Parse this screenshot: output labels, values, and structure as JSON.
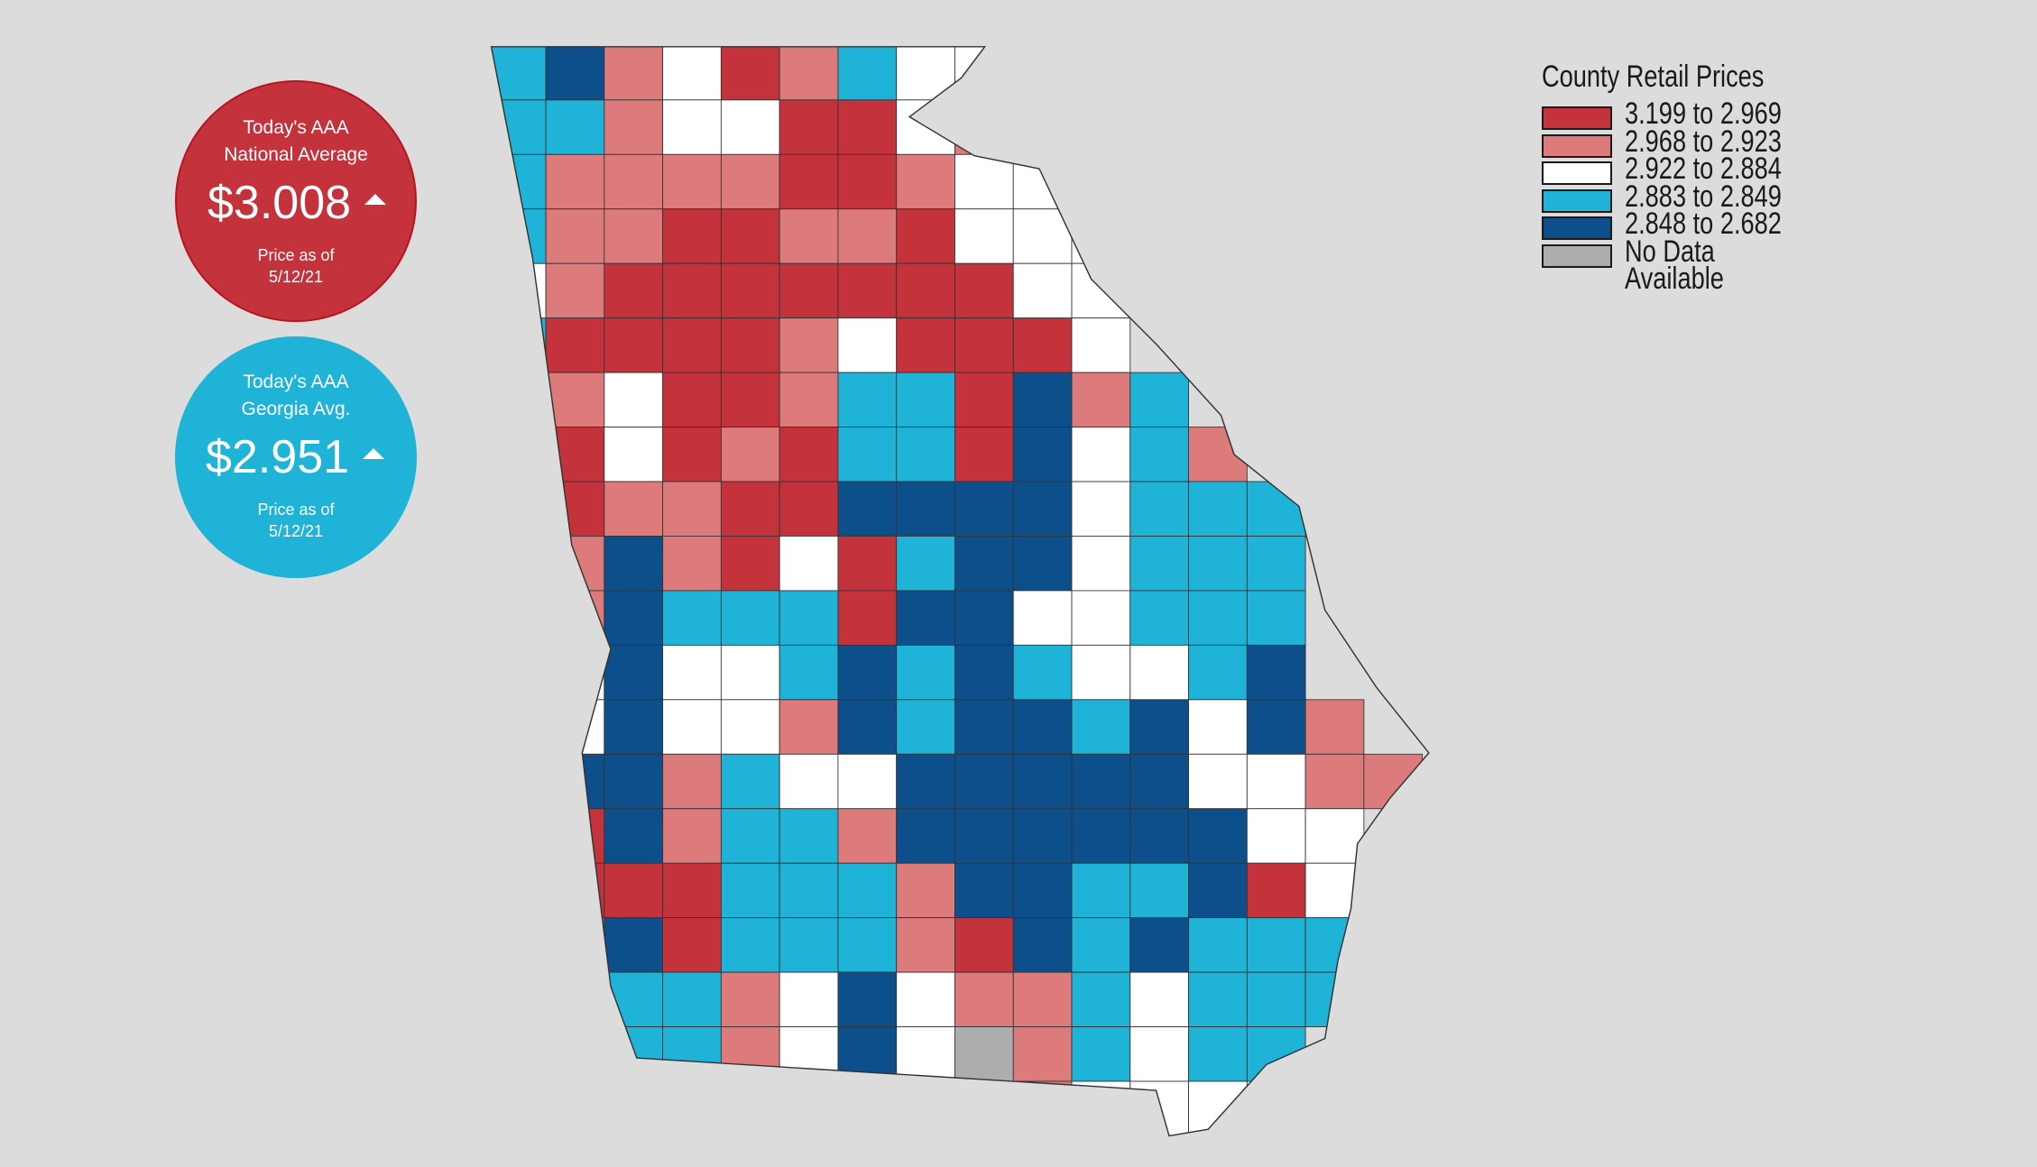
{
  "national": {
    "title_line1": "Today's AAA",
    "title_line2": "National Average",
    "price": "$3.008",
    "trend": "up",
    "date_line1": "Price as of",
    "date_line2": "5/12/21",
    "color": "#c4323c"
  },
  "georgia": {
    "title_line1": "Today's AAA",
    "title_line2": "Georgia Avg.",
    "price": "$2.951",
    "trend": "up",
    "date_line1": "Price as of",
    "date_line2": "5/12/21",
    "color": "#1fb3d7"
  },
  "legend": {
    "title": "County Retail Prices",
    "items": [
      {
        "label": "3.199 to 2.969",
        "color": "#c4323c"
      },
      {
        "label": "2.968 to 2.923",
        "color": "#dc7a7c"
      },
      {
        "label": "2.922 to 2.884",
        "color": "#ffffff"
      },
      {
        "label": "2.883 to 2.849",
        "color": "#1fb3d7"
      },
      {
        "label": "2.848 to 2.682",
        "color": "#0d4f8b"
      },
      {
        "label": "No Data",
        "label2": "Available",
        "color": "#adadad"
      }
    ]
  }
}
